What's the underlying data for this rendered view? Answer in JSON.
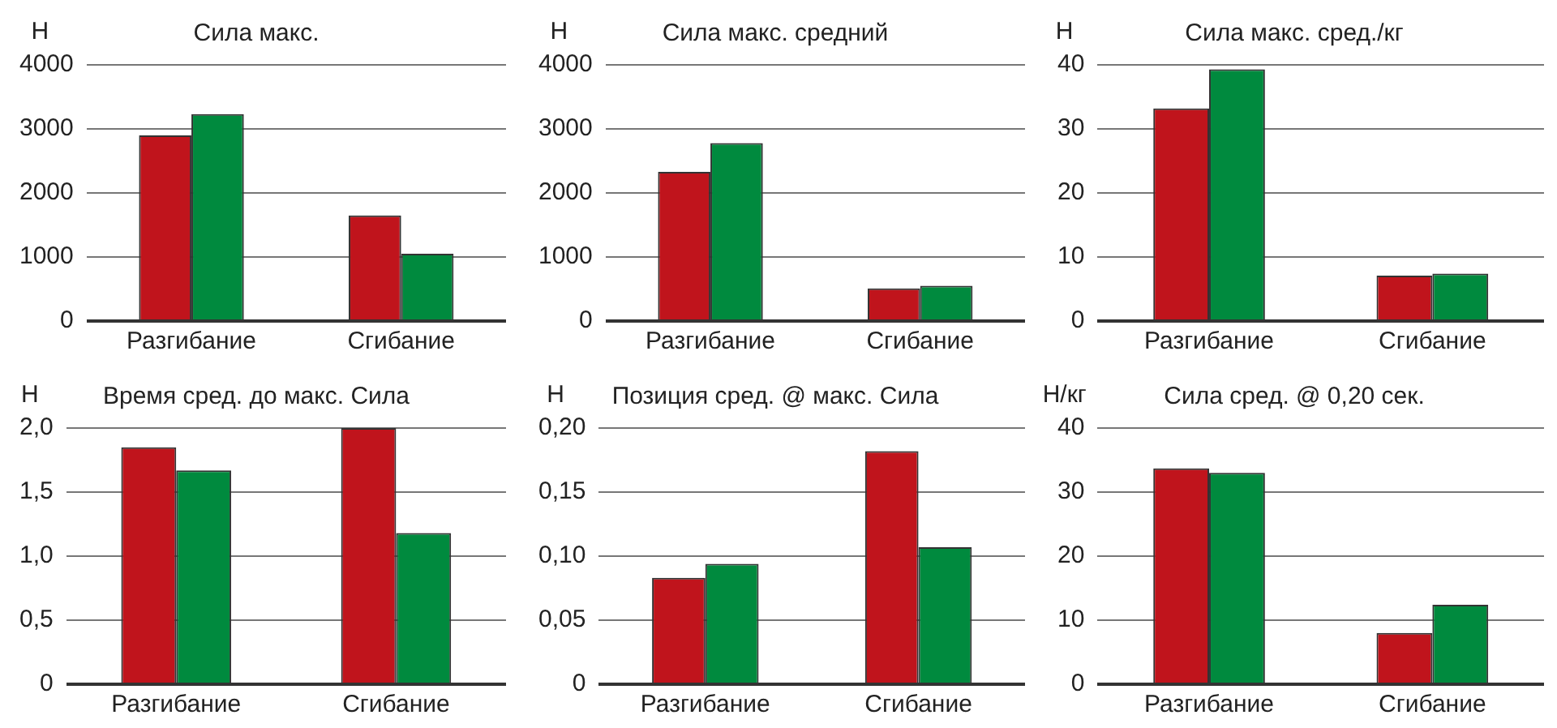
{
  "chart_data": [
    {
      "type": "bar",
      "title": "Сила макс.",
      "ylabel": "Н",
      "categories": [
        "Разгибание",
        "Сгибание"
      ],
      "series": [
        {
          "color": "#c0141c",
          "values": [
            2900,
            1650
          ]
        },
        {
          "color": "#008a3e",
          "values": [
            3230,
            1050
          ]
        }
      ],
      "ylim": [
        0,
        4000
      ],
      "yticks": [
        0,
        1000,
        2000,
        3000,
        4000
      ],
      "grid": "y"
    },
    {
      "type": "bar",
      "title": "Сила макс. средний",
      "ylabel": "Н",
      "categories": [
        "Разгибание",
        "Сгибание"
      ],
      "series": [
        {
          "color": "#c0141c",
          "values": [
            2330,
            510
          ]
        },
        {
          "color": "#008a3e",
          "values": [
            2780,
            550
          ]
        }
      ],
      "ylim": [
        0,
        4000
      ],
      "yticks": [
        0,
        1000,
        2000,
        3000,
        4000
      ],
      "grid": "y"
    },
    {
      "type": "bar",
      "title": "Сила макс. сред./кг",
      "ylabel": "Н",
      "categories": [
        "Разгибание",
        "Сгибание"
      ],
      "series": [
        {
          "color": "#c0141c",
          "values": [
            33.2,
            7.1
          ]
        },
        {
          "color": "#008a3e",
          "values": [
            39.3,
            7.4
          ]
        }
      ],
      "ylim": [
        0,
        40
      ],
      "yticks": [
        0,
        10,
        20,
        30,
        40
      ],
      "grid": "y"
    },
    {
      "type": "bar",
      "title": "Время сред. до макс. Сила",
      "ylabel": "Н",
      "categories": [
        "Разгибание",
        "Сгибание"
      ],
      "series": [
        {
          "color": "#c0141c",
          "values": [
            1.85,
            2.0
          ]
        },
        {
          "color": "#008a3e",
          "values": [
            1.67,
            1.18
          ]
        }
      ],
      "ylim": [
        0,
        2
      ],
      "yticks": [
        0,
        {
          "value": 0.5,
          "label": "0,5"
        },
        {
          "value": 1,
          "label": "1,0"
        },
        {
          "value": 1.5,
          "label": "1,5"
        },
        {
          "value": 2,
          "label": "2,0"
        }
      ],
      "grid": "y"
    },
    {
      "type": "bar",
      "title": "Позиция сред. @ макс. Сила",
      "ylabel": "Н",
      "categories": [
        "Разгибание",
        "Сгибание"
      ],
      "series": [
        {
          "color": "#c0141c",
          "values": [
            0.083,
            0.182
          ]
        },
        {
          "color": "#008a3e",
          "values": [
            0.094,
            0.107
          ]
        }
      ],
      "ylim": [
        0,
        0.2
      ],
      "yticks": [
        0,
        {
          "value": 0.05,
          "label": "0,05"
        },
        {
          "value": 0.1,
          "label": "0,10"
        },
        {
          "value": 0.15,
          "label": "0,15"
        },
        {
          "value": 0.2,
          "label": "0,20"
        }
      ],
      "grid": "y"
    },
    {
      "type": "bar",
      "title": "Сила сред. @ 0,20 сек.",
      "ylabel": "Н/кг",
      "categories": [
        "Разгибание",
        "Сгибание"
      ],
      "series": [
        {
          "color": "#c0141c",
          "values": [
            33.7,
            8.0
          ]
        },
        {
          "color": "#008a3e",
          "values": [
            33.0,
            12.4
          ]
        }
      ],
      "ylim": [
        0,
        40
      ],
      "yticks": [
        0,
        10,
        20,
        30,
        40
      ],
      "grid": "y"
    }
  ]
}
